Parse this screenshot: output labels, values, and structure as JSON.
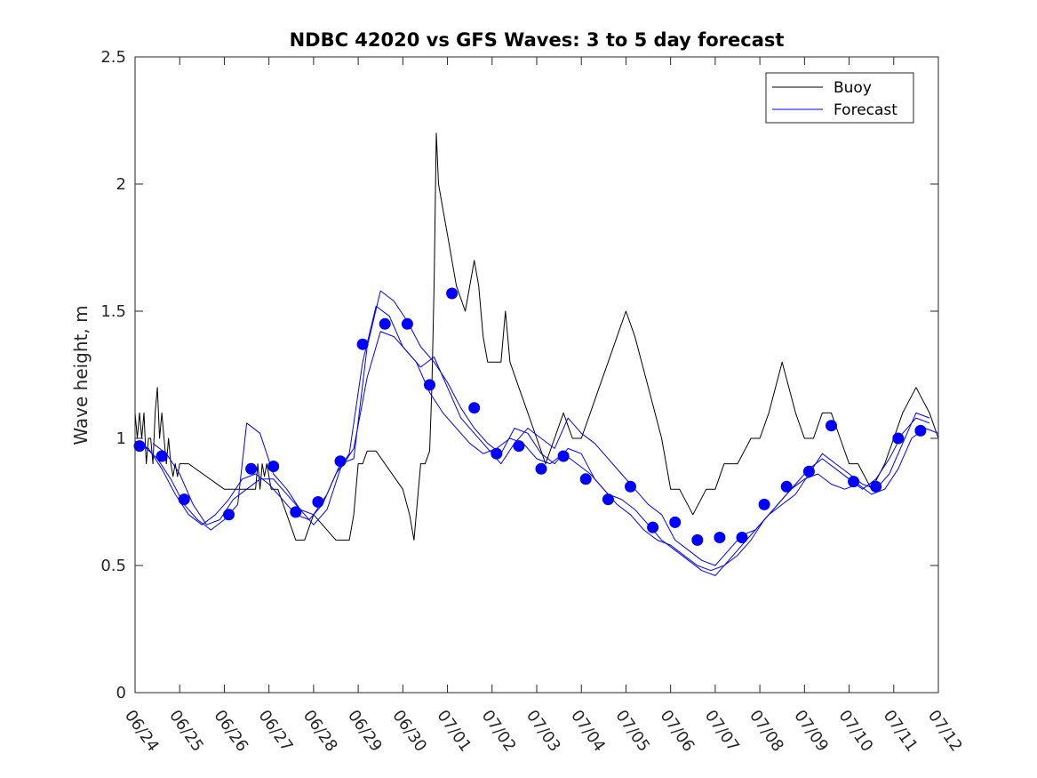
{
  "chart_data": {
    "type": "line",
    "title": "NDBC 42020 vs GFS Waves: 3 to 5 day forecast",
    "xlabel": "",
    "ylabel": "Wave height, m",
    "ylim": [
      0,
      2.5
    ],
    "xlim": [
      0,
      18
    ],
    "x_unit": "days, tick 0 = 06/24",
    "yticks": [
      "0",
      "0.5",
      "1",
      "1.5",
      "2",
      "2.5"
    ],
    "xticks": [
      "06/24",
      "06/25",
      "06/26",
      "06/27",
      "06/28",
      "06/29",
      "06/30",
      "07/01",
      "07/02",
      "07/03",
      "07/04",
      "07/05",
      "07/06",
      "07/07",
      "07/08",
      "07/09",
      "07/10",
      "07/11",
      "07/12"
    ],
    "grid": false,
    "legend_position": "top-right",
    "series": [
      {
        "name": "Buoy",
        "color": "#000000",
        "style": "line",
        "x": [
          0.0,
          0.05,
          0.1,
          0.15,
          0.2,
          0.25,
          0.3,
          0.35,
          0.4,
          0.45,
          0.5,
          0.55,
          0.6,
          0.65,
          0.7,
          0.75,
          0.8,
          0.85,
          0.9,
          0.95,
          1.0,
          1.2,
          2.0,
          2.7,
          2.75,
          2.8,
          2.85,
          2.9,
          2.95,
          3.0,
          3.05,
          3.1,
          3.15,
          3.2,
          3.3,
          3.4,
          3.5,
          3.6,
          3.8,
          4.0,
          4.5,
          4.8,
          4.9,
          5.0,
          5.1,
          5.2,
          5.4,
          6.0,
          6.15,
          6.25,
          6.3,
          6.35,
          6.4,
          6.5,
          6.6,
          6.65,
          6.7,
          6.75,
          6.8,
          6.9,
          7.0,
          7.2,
          7.4,
          7.5,
          7.6,
          7.7,
          7.8,
          7.9,
          8.0,
          8.2,
          8.3,
          8.4,
          8.6,
          8.8,
          9.0,
          9.2,
          9.4,
          9.6,
          9.8,
          10.0,
          10.2,
          10.4,
          10.6,
          10.8,
          11.0,
          11.2,
          11.5,
          11.8,
          12.0,
          12.2,
          12.5,
          12.8,
          13.0,
          13.2,
          13.5,
          13.8,
          14.0,
          14.2,
          14.5,
          14.8,
          15.0,
          15.2,
          15.4,
          15.6,
          15.8,
          16.0,
          16.2,
          16.5,
          16.8,
          17.0,
          17.2,
          17.5,
          17.8,
          18.0
        ],
        "values": [
          1.1,
          1.0,
          1.1,
          1.0,
          1.1,
          0.9,
          1.0,
          1.0,
          0.9,
          1.1,
          1.2,
          1.0,
          1.1,
          1.0,
          0.9,
          1.0,
          0.9,
          0.85,
          0.9,
          0.85,
          0.9,
          0.9,
          0.8,
          0.8,
          0.9,
          0.8,
          0.9,
          0.85,
          0.9,
          0.85,
          0.8,
          0.8,
          0.8,
          0.8,
          0.75,
          0.7,
          0.65,
          0.6,
          0.6,
          0.7,
          0.6,
          0.6,
          0.7,
          0.9,
          0.9,
          0.95,
          0.95,
          0.8,
          0.7,
          0.6,
          0.7,
          0.8,
          0.9,
          0.9,
          0.95,
          1.2,
          1.6,
          2.2,
          2.0,
          1.9,
          1.8,
          1.6,
          1.5,
          1.6,
          1.7,
          1.6,
          1.4,
          1.3,
          1.3,
          1.3,
          1.5,
          1.3,
          1.2,
          1.1,
          1.0,
          0.9,
          1.0,
          1.1,
          1.0,
          1.0,
          1.1,
          1.2,
          1.3,
          1.4,
          1.5,
          1.4,
          1.2,
          1.0,
          0.8,
          0.8,
          0.7,
          0.8,
          0.8,
          0.9,
          0.9,
          1.0,
          1.0,
          1.1,
          1.3,
          1.1,
          1.0,
          1.0,
          1.1,
          1.1,
          1.0,
          0.9,
          0.9,
          0.8,
          0.9,
          1.0,
          1.1,
          1.2,
          1.1,
          1.0
        ]
      },
      {
        "name": "Forecast",
        "color": "#0000ff",
        "style": "line",
        "x": [
          0.0,
          0.3,
          0.6,
          0.9,
          1.2,
          1.5,
          1.8,
          2.1,
          2.4,
          2.7,
          3.0,
          3.3,
          3.6,
          3.9,
          4.2,
          4.5,
          4.8,
          5.1,
          5.4,
          5.7,
          6.0,
          6.3,
          6.6,
          6.9,
          7.2,
          7.5,
          7.8,
          8.1,
          8.4,
          8.7,
          9.0,
          9.3,
          9.6,
          9.9,
          10.2,
          10.5,
          10.8,
          11.1,
          11.4,
          11.7,
          12.0,
          12.3,
          12.6,
          12.9,
          13.2,
          13.5,
          13.8,
          14.1,
          14.4,
          14.7,
          15.0,
          15.3,
          15.6,
          15.9,
          16.2,
          16.5,
          16.8,
          17.1,
          17.4,
          17.7,
          18.0
        ],
        "values": [
          0.99,
          0.96,
          0.88,
          0.78,
          0.7,
          0.66,
          0.7,
          0.76,
          0.84,
          0.86,
          0.82,
          0.76,
          0.7,
          0.68,
          0.74,
          0.86,
          0.94,
          1.3,
          1.52,
          1.48,
          1.36,
          1.3,
          1.18,
          1.1,
          1.04,
          0.98,
          0.94,
          0.96,
          1.0,
          0.98,
          0.92,
          0.9,
          0.94,
          0.9,
          0.86,
          0.8,
          0.74,
          0.7,
          0.64,
          0.6,
          0.58,
          0.54,
          0.5,
          0.48,
          0.5,
          0.54,
          0.6,
          0.68,
          0.74,
          0.8,
          0.84,
          0.86,
          0.82,
          0.8,
          0.82,
          0.78,
          0.8,
          0.88,
          1.0,
          1.04,
          1.02
        ]
      },
      {
        "name": "",
        "color": "#0000ff",
        "style": "line",
        "x": [
          0.2,
          0.5,
          0.8,
          1.1,
          1.4,
          1.7,
          2.0,
          2.3,
          2.5,
          2.8,
          3.1,
          3.4,
          3.7,
          4.0,
          4.3,
          4.6,
          4.9,
          5.2,
          5.5,
          5.8,
          6.1,
          6.4,
          6.7,
          7.0,
          7.3,
          7.6,
          7.9,
          8.2,
          8.5,
          8.8,
          9.1,
          9.4,
          9.7,
          10.0,
          10.3,
          10.6,
          10.9,
          11.2,
          11.5,
          11.8,
          12.1,
          12.4,
          12.7,
          13.0,
          13.3,
          13.6,
          13.9,
          14.2,
          14.5,
          14.8,
          15.1,
          15.4,
          15.7,
          16.0,
          16.3,
          16.6,
          16.9,
          17.2,
          17.5,
          17.8
        ],
        "values": [
          0.97,
          0.92,
          0.84,
          0.74,
          0.68,
          0.64,
          0.68,
          0.74,
          1.06,
          1.02,
          0.86,
          0.8,
          0.72,
          0.7,
          0.78,
          0.9,
          0.92,
          1.36,
          1.58,
          1.54,
          1.46,
          1.36,
          1.3,
          1.22,
          1.12,
          1.04,
          0.98,
          0.94,
          1.04,
          1.02,
          0.94,
          0.9,
          0.96,
          0.94,
          0.84,
          0.78,
          0.76,
          0.72,
          0.66,
          0.6,
          0.56,
          0.52,
          0.48,
          0.46,
          0.52,
          0.58,
          0.64,
          0.7,
          0.76,
          0.82,
          0.88,
          0.92,
          0.88,
          0.84,
          0.8,
          0.84,
          0.92,
          1.02,
          1.08,
          1.06
        ]
      },
      {
        "name": "",
        "color": "#0000ff",
        "style": "line",
        "x": [
          0.4,
          0.7,
          1.0,
          1.3,
          1.6,
          1.9,
          2.2,
          2.5,
          2.8,
          3.1,
          3.4,
          3.7,
          4.0,
          4.3,
          4.6,
          4.9,
          5.2,
          5.5,
          5.8,
          6.1,
          6.4,
          6.7,
          7.0,
          7.3,
          7.6,
          7.9,
          8.2,
          8.5,
          8.8,
          9.1,
          9.4,
          9.7,
          10.0,
          10.3,
          10.6,
          10.9,
          11.2,
          11.5,
          11.8,
          12.1,
          12.4,
          12.7,
          13.0,
          13.3,
          13.6,
          13.9,
          14.2,
          14.5,
          14.8,
          15.1,
          15.4,
          15.7,
          16.0,
          16.3,
          16.6,
          16.9,
          17.2,
          17.5,
          17.8
        ],
        "values": [
          0.98,
          0.94,
          0.86,
          0.74,
          0.66,
          0.68,
          0.76,
          0.8,
          0.84,
          0.84,
          0.78,
          0.72,
          0.66,
          0.72,
          0.88,
          0.96,
          1.24,
          1.42,
          1.4,
          1.34,
          1.28,
          1.32,
          1.2,
          1.08,
          1.02,
          0.96,
          0.9,
          0.98,
          1.04,
          1.0,
          0.96,
          1.08,
          1.02,
          0.98,
          0.92,
          0.86,
          0.8,
          0.74,
          0.7,
          0.6,
          0.56,
          0.52,
          0.5,
          0.56,
          0.62,
          0.64,
          0.7,
          0.74,
          0.78,
          0.86,
          0.94,
          0.9,
          0.86,
          0.82,
          0.8,
          0.86,
          0.98,
          1.1,
          1.08
        ]
      }
    ],
    "markers": {
      "name": "Forecast",
      "color": "#0000ff",
      "style": "dot",
      "x": [
        0.1,
        0.6,
        1.1,
        2.1,
        2.6,
        3.1,
        3.6,
        4.1,
        4.6,
        5.1,
        5.6,
        6.1,
        6.6,
        7.1,
        7.6,
        8.1,
        8.6,
        9.1,
        9.6,
        10.1,
        10.6,
        11.1,
        11.6,
        12.1,
        12.6,
        13.1,
        13.6,
        14.1,
        14.6,
        15.1,
        15.6,
        16.1,
        16.6,
        17.1,
        17.6
      ],
      "values": [
        0.97,
        0.93,
        0.76,
        0.7,
        0.88,
        0.89,
        0.71,
        0.75,
        0.91,
        1.37,
        1.45,
        1.45,
        1.21,
        1.57,
        1.12,
        0.94,
        0.97,
        0.88,
        0.93,
        0.84,
        0.76,
        0.81,
        0.65,
        0.67,
        0.6,
        0.61,
        0.61,
        0.74,
        0.81,
        0.87,
        1.05,
        0.83,
        0.81,
        1.0,
        1.03
      ]
    }
  }
}
